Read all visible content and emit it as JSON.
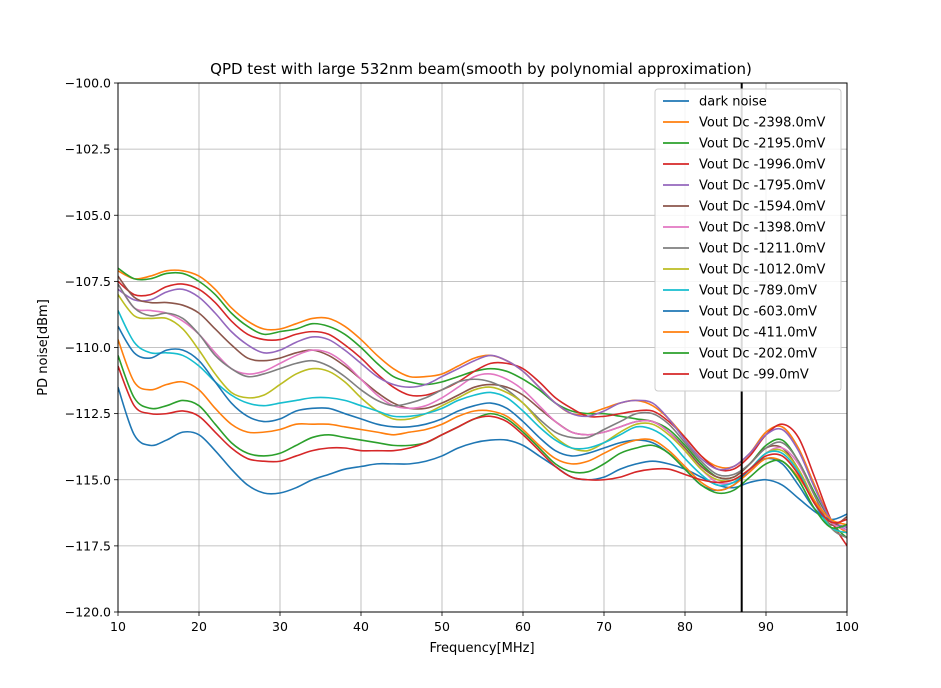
{
  "chart_data": {
    "type": "line",
    "title": "QPD test with large 532nm beam(smooth by polynomial approximation)",
    "xlabel": "Frequency[MHz]",
    "ylabel": "PD noise[dBm]",
    "xlim": [
      10,
      100
    ],
    "ylim": [
      -120,
      -100
    ],
    "xticks": [
      10,
      20,
      30,
      40,
      50,
      60,
      70,
      80,
      90,
      100
    ],
    "yticks": [
      -120.0,
      -117.5,
      -115.0,
      -112.5,
      -110.0,
      -107.5,
      -105.0,
      -102.5,
      -100.0
    ],
    "xtick_labels": [
      "10",
      "20",
      "30",
      "40",
      "50",
      "60",
      "70",
      "80",
      "90",
      "100"
    ],
    "ytick_labels": [
      "−120.0",
      "−117.5",
      "−115.0",
      "−112.5",
      "−110.0",
      "−107.5",
      "−105.0",
      "−102.5",
      "−100.0"
    ],
    "grid": true,
    "legend_position": "top-right",
    "vline": {
      "x": 87,
      "color": "#000000"
    },
    "x": [
      10,
      12,
      14,
      16,
      18,
      20,
      22,
      24,
      26,
      28,
      30,
      32,
      34,
      36,
      38,
      40,
      42,
      44,
      46,
      48,
      50,
      52,
      54,
      56,
      58,
      60,
      62,
      64,
      66,
      68,
      70,
      72,
      74,
      76,
      78,
      80,
      82,
      84,
      86,
      88,
      90,
      92,
      94,
      96,
      98,
      100
    ],
    "series": [
      {
        "name": "dark noise",
        "color": "#1f77b4",
        "values": [
          -111.5,
          -113.3,
          -113.7,
          -113.5,
          -113.2,
          -113.3,
          -113.9,
          -114.6,
          -115.2,
          -115.5,
          -115.5,
          -115.3,
          -115.0,
          -114.8,
          -114.6,
          -114.5,
          -114.4,
          -114.4,
          -114.4,
          -114.3,
          -114.1,
          -113.8,
          -113.6,
          -113.5,
          -113.5,
          -113.7,
          -114.1,
          -114.5,
          -114.9,
          -115.0,
          -114.9,
          -114.6,
          -114.4,
          -114.3,
          -114.4,
          -114.6,
          -114.9,
          -115.2,
          -115.3,
          -115.1,
          -115.0,
          -115.2,
          -115.7,
          -116.2,
          -116.6,
          -116.9
        ]
      },
      {
        "name": "Vout Dc -2398.0mV",
        "color": "#ff7f0e",
        "values": [
          -107.1,
          -107.4,
          -107.3,
          -107.1,
          -107.1,
          -107.3,
          -107.8,
          -108.5,
          -109.0,
          -109.3,
          -109.3,
          -109.1,
          -108.9,
          -108.9,
          -109.2,
          -109.7,
          -110.3,
          -110.8,
          -111.1,
          -111.1,
          -111.0,
          -110.7,
          -110.4,
          -110.3,
          -110.5,
          -110.9,
          -111.5,
          -112.1,
          -112.5,
          -112.5,
          -112.3,
          -112.1,
          -112.0,
          -112.2,
          -112.7,
          -113.4,
          -114.1,
          -114.5,
          -114.5,
          -114.0,
          -113.2,
          -113.0,
          -113.8,
          -115.2,
          -116.5,
          -117.0
        ]
      },
      {
        "name": "Vout Dc -2195.0mV",
        "color": "#2ca02c",
        "values": [
          -107.0,
          -107.4,
          -107.4,
          -107.2,
          -107.2,
          -107.5,
          -108.0,
          -108.7,
          -109.2,
          -109.5,
          -109.4,
          -109.3,
          -109.1,
          -109.2,
          -109.5,
          -110.0,
          -110.6,
          -111.1,
          -111.3,
          -111.4,
          -111.3,
          -111.1,
          -110.9,
          -110.8,
          -110.9,
          -111.2,
          -111.6,
          -112.1,
          -112.4,
          -112.5,
          -112.5,
          -112.6,
          -112.7,
          -112.8,
          -113.1,
          -113.7,
          -114.4,
          -114.9,
          -114.9,
          -114.4,
          -113.7,
          -113.5,
          -114.3,
          -115.5,
          -116.6,
          -117.2
        ]
      },
      {
        "name": "Vout Dc -1996.0mV",
        "color": "#d62728",
        "values": [
          -107.5,
          -108.0,
          -108.0,
          -107.7,
          -107.6,
          -107.8,
          -108.3,
          -109.0,
          -109.5,
          -109.7,
          -109.7,
          -109.5,
          -109.4,
          -109.5,
          -109.9,
          -110.4,
          -111.0,
          -111.5,
          -111.8,
          -111.8,
          -111.6,
          -111.3,
          -110.9,
          -110.6,
          -110.6,
          -110.8,
          -111.3,
          -111.9,
          -112.3,
          -112.6,
          -112.6,
          -112.5,
          -112.4,
          -112.4,
          -112.8,
          -113.4,
          -114.1,
          -114.6,
          -114.6,
          -114.1,
          -113.3,
          -112.9,
          -113.4,
          -114.9,
          -116.5,
          -117.5
        ]
      },
      {
        "name": "Vout Dc -1795.0mV",
        "color": "#9467bd",
        "values": [
          -107.8,
          -108.2,
          -108.2,
          -107.9,
          -107.8,
          -108.1,
          -108.7,
          -109.4,
          -109.9,
          -110.2,
          -110.1,
          -109.8,
          -109.6,
          -109.7,
          -110.1,
          -110.6,
          -111.1,
          -111.4,
          -111.5,
          -111.4,
          -111.1,
          -110.8,
          -110.5,
          -110.3,
          -110.5,
          -110.9,
          -111.5,
          -112.1,
          -112.5,
          -112.6,
          -112.4,
          -112.1,
          -112.0,
          -112.1,
          -112.7,
          -113.5,
          -114.2,
          -114.6,
          -114.5,
          -114.0,
          -113.3,
          -113.1,
          -113.9,
          -115.3,
          -116.5,
          -116.8
        ]
      },
      {
        "name": "Vout Dc -1594.0mV",
        "color": "#8c564b",
        "values": [
          -107.3,
          -108.1,
          -108.3,
          -108.3,
          -108.4,
          -108.7,
          -109.3,
          -109.9,
          -110.4,
          -110.5,
          -110.4,
          -110.2,
          -110.1,
          -110.3,
          -110.7,
          -111.2,
          -111.7,
          -112.1,
          -112.3,
          -112.3,
          -112.1,
          -111.8,
          -111.5,
          -111.4,
          -111.5,
          -111.8,
          -112.3,
          -112.8,
          -113.2,
          -113.3,
          -113.2,
          -113.0,
          -112.8,
          -112.8,
          -113.2,
          -113.8,
          -114.5,
          -114.9,
          -114.9,
          -114.4,
          -113.8,
          -113.8,
          -114.6,
          -115.8,
          -116.7,
          -116.4
        ]
      },
      {
        "name": "Vout Dc -1398.0mV",
        "color": "#e377c2",
        "values": [
          -107.6,
          -108.5,
          -108.6,
          -108.7,
          -109.0,
          -109.5,
          -110.2,
          -110.8,
          -111.0,
          -110.9,
          -110.6,
          -110.3,
          -110.1,
          -110.2,
          -110.6,
          -111.2,
          -111.8,
          -112.2,
          -112.3,
          -112.2,
          -111.9,
          -111.5,
          -111.1,
          -111.0,
          -111.2,
          -111.6,
          -112.2,
          -112.8,
          -113.2,
          -113.3,
          -113.2,
          -113.0,
          -112.8,
          -112.8,
          -113.2,
          -113.9,
          -114.6,
          -115.1,
          -115.1,
          -114.7,
          -114.0,
          -113.8,
          -114.4,
          -115.6,
          -116.6,
          -116.9
        ]
      },
      {
        "name": "Vout Dc -1211.0mV",
        "color": "#7f7f7f",
        "values": [
          -107.6,
          -108.5,
          -108.8,
          -108.7,
          -108.9,
          -109.5,
          -110.3,
          -110.8,
          -111.1,
          -111.0,
          -110.8,
          -110.6,
          -110.5,
          -110.7,
          -111.1,
          -111.6,
          -112.0,
          -112.2,
          -112.1,
          -111.9,
          -111.6,
          -111.3,
          -111.2,
          -111.3,
          -111.6,
          -112.1,
          -112.7,
          -113.2,
          -113.4,
          -113.4,
          -113.1,
          -112.8,
          -112.5,
          -112.5,
          -112.9,
          -113.6,
          -114.3,
          -114.8,
          -114.8,
          -114.4,
          -113.8,
          -113.6,
          -114.3,
          -115.6,
          -116.8,
          -117.2
        ]
      },
      {
        "name": "Vout Dc -1012.0mV",
        "color": "#bcbd22",
        "values": [
          -108.0,
          -108.8,
          -108.9,
          -108.9,
          -109.3,
          -110.1,
          -111.0,
          -111.7,
          -111.9,
          -111.8,
          -111.4,
          -111.0,
          -110.8,
          -110.9,
          -111.3,
          -111.9,
          -112.4,
          -112.7,
          -112.7,
          -112.5,
          -112.2,
          -111.9,
          -111.6,
          -111.5,
          -111.7,
          -112.1,
          -112.8,
          -113.4,
          -113.8,
          -113.9,
          -113.6,
          -113.2,
          -112.9,
          -112.9,
          -113.3,
          -113.9,
          -114.6,
          -115.0,
          -115.0,
          -114.6,
          -114.0,
          -113.9,
          -114.6,
          -115.8,
          -116.8,
          -117.0
        ]
      },
      {
        "name": "Vout Dc -789.0mV",
        "color": "#17becf",
        "values": [
          -108.6,
          -109.8,
          -110.2,
          -110.2,
          -110.3,
          -110.7,
          -111.3,
          -111.8,
          -112.1,
          -112.2,
          -112.1,
          -112.0,
          -111.9,
          -111.9,
          -112.0,
          -112.2,
          -112.4,
          -112.6,
          -112.6,
          -112.5,
          -112.3,
          -112.0,
          -111.8,
          -111.7,
          -111.9,
          -112.4,
          -113.0,
          -113.5,
          -113.8,
          -113.8,
          -113.6,
          -113.3,
          -113.0,
          -113.1,
          -113.5,
          -114.2,
          -114.8,
          -115.2,
          -115.1,
          -114.6,
          -114.0,
          -114.0,
          -114.7,
          -115.9,
          -116.8,
          -117.0
        ]
      },
      {
        "name": "Vout Dc -603.0mV",
        "color": "#1f77b4",
        "values": [
          -109.2,
          -110.2,
          -110.4,
          -110.1,
          -110.1,
          -110.5,
          -111.3,
          -112.1,
          -112.6,
          -112.8,
          -112.7,
          -112.4,
          -112.3,
          -112.3,
          -112.5,
          -112.7,
          -112.9,
          -113.0,
          -113.0,
          -112.9,
          -112.7,
          -112.4,
          -112.2,
          -112.1,
          -112.3,
          -112.8,
          -113.4,
          -113.9,
          -114.1,
          -114.0,
          -113.8,
          -113.6,
          -113.5,
          -113.6,
          -114.0,
          -114.6,
          -115.2,
          -115.4,
          -115.2,
          -114.6,
          -114.2,
          -114.4,
          -115.2,
          -116.1,
          -116.5,
          -116.3
        ]
      },
      {
        "name": "Vout Dc -411.0mV",
        "color": "#ff7f0e",
        "values": [
          -109.7,
          -111.3,
          -111.6,
          -111.4,
          -111.3,
          -111.6,
          -112.3,
          -112.9,
          -113.2,
          -113.2,
          -113.1,
          -112.9,
          -112.9,
          -112.9,
          -113.0,
          -113.1,
          -113.2,
          -113.3,
          -113.2,
          -113.1,
          -112.9,
          -112.6,
          -112.4,
          -112.4,
          -112.6,
          -113.1,
          -113.7,
          -114.2,
          -114.4,
          -114.3,
          -114.0,
          -113.7,
          -113.5,
          -113.5,
          -113.9,
          -114.5,
          -115.1,
          -115.4,
          -115.2,
          -114.7,
          -114.2,
          -114.3,
          -114.9,
          -115.8,
          -116.5,
          -116.7
        ]
      },
      {
        "name": "Vout Dc -202.0mV",
        "color": "#2ca02c",
        "values": [
          -110.3,
          -111.9,
          -112.3,
          -112.2,
          -112.0,
          -112.2,
          -112.9,
          -113.6,
          -114.0,
          -114.1,
          -114.0,
          -113.7,
          -113.4,
          -113.3,
          -113.4,
          -113.5,
          -113.6,
          -113.7,
          -113.7,
          -113.6,
          -113.3,
          -113.0,
          -112.7,
          -112.5,
          -112.7,
          -113.2,
          -113.8,
          -114.4,
          -114.7,
          -114.7,
          -114.4,
          -114.0,
          -113.8,
          -113.7,
          -114.0,
          -114.6,
          -115.2,
          -115.5,
          -115.4,
          -114.9,
          -114.4,
          -114.3,
          -115.0,
          -116.1,
          -116.8,
          -116.7
        ]
      },
      {
        "name": "Vout Dc -99.0mV",
        "color": "#d62728",
        "values": [
          -110.7,
          -112.2,
          -112.5,
          -112.5,
          -112.4,
          -112.6,
          -113.2,
          -113.8,
          -114.2,
          -114.3,
          -114.3,
          -114.1,
          -113.9,
          -113.8,
          -113.8,
          -113.9,
          -113.9,
          -113.9,
          -113.8,
          -113.6,
          -113.3,
          -113.0,
          -112.7,
          -112.6,
          -112.8,
          -113.3,
          -113.9,
          -114.5,
          -114.9,
          -115.0,
          -115.0,
          -114.9,
          -114.7,
          -114.6,
          -114.6,
          -114.8,
          -115.0,
          -115.1,
          -115.0,
          -114.6,
          -114.1,
          -114.1,
          -114.8,
          -115.9,
          -116.6,
          -116.5
        ]
      }
    ]
  }
}
